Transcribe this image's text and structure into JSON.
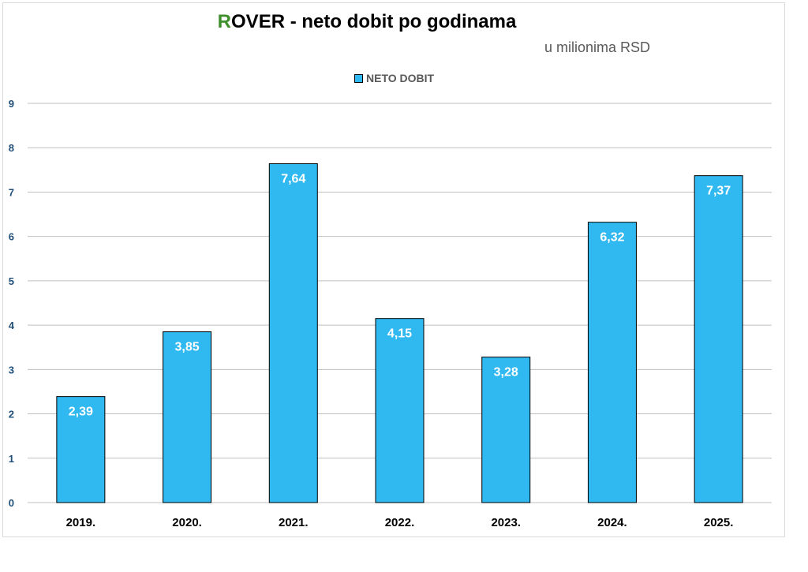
{
  "title_accent": "R",
  "title_rest": "OVER -  neto dobit  po godinama",
  "subtitle": "u milionima RSD",
  "colors": {
    "bar": "#30b8f0",
    "bar_border": "#000000",
    "title_accent": "#3f8f2c",
    "grid": "#bfbfbf",
    "tick_y": "#1f4e79",
    "label": "#ffffff"
  },
  "chart_data": {
    "type": "bar",
    "title": "ROVER -  neto dobit  po godinama",
    "subtitle": "u milionima RSD",
    "categories": [
      "2019.",
      "2020.",
      "2021.",
      "2022.",
      "2023.",
      "2024.",
      "2025."
    ],
    "series": [
      {
        "name": "NETO DOBIT",
        "values": [
          2.39,
          3.85,
          7.64,
          4.15,
          3.28,
          6.32,
          7.37
        ],
        "labels": [
          "2,39",
          "3,85",
          "7,64",
          "4,15",
          "3,28",
          "6,32",
          "7,37"
        ]
      }
    ],
    "ylim": [
      0,
      9
    ],
    "yticks": [
      0,
      1,
      2,
      3,
      4,
      5,
      6,
      7,
      8,
      9
    ],
    "grid": true,
    "legend": "top-center"
  }
}
